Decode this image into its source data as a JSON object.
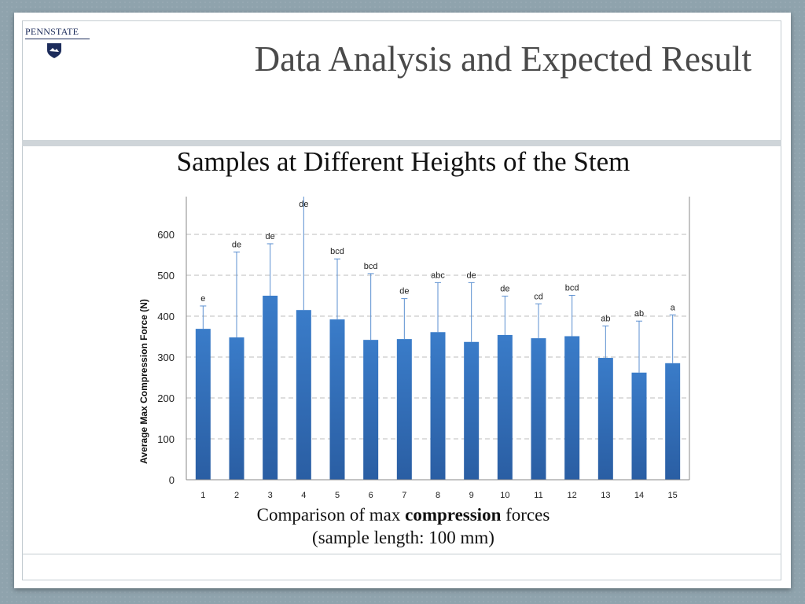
{
  "slide": {
    "title": "Data Analysis and Expected Result",
    "logo_text": "PENNSTATE",
    "caption_prefix": "Comparison of max ",
    "caption_bold": "compression",
    "caption_suffix": " forces",
    "caption_line2": "(sample length: 100 mm)"
  },
  "chart_data": {
    "type": "bar",
    "title": "Samples at Different Heights of the Stem",
    "ylabel": "Average Max Compression Force (N)",
    "xlabel": "",
    "ylim": [
      0,
      700
    ],
    "yticks": [
      0,
      100,
      200,
      300,
      400,
      500,
      600
    ],
    "grid": true,
    "categories": [
      "1",
      "2",
      "3",
      "4",
      "5",
      "6",
      "7",
      "8",
      "9",
      "10",
      "11",
      "12",
      "13",
      "14",
      "15"
    ],
    "values": [
      369,
      348,
      450,
      415,
      392,
      342,
      344,
      361,
      337,
      354,
      346,
      351,
      298,
      262,
      285
    ],
    "error_upper": [
      425,
      557,
      577,
      700,
      540,
      504,
      443,
      482,
      482,
      449,
      430,
      451,
      376,
      388,
      403
    ],
    "annotations": [
      "e",
      "de",
      "de",
      "de",
      "bcd",
      "bcd",
      "de",
      "abc",
      "de",
      "de",
      "cd",
      "bcd",
      "ab",
      "ab",
      "a"
    ],
    "colors": {
      "bar": "#3a7cc9",
      "bar_dark": "#2a5ea3",
      "error": "#5b8fd0",
      "grid": "#bdbdbd"
    }
  }
}
